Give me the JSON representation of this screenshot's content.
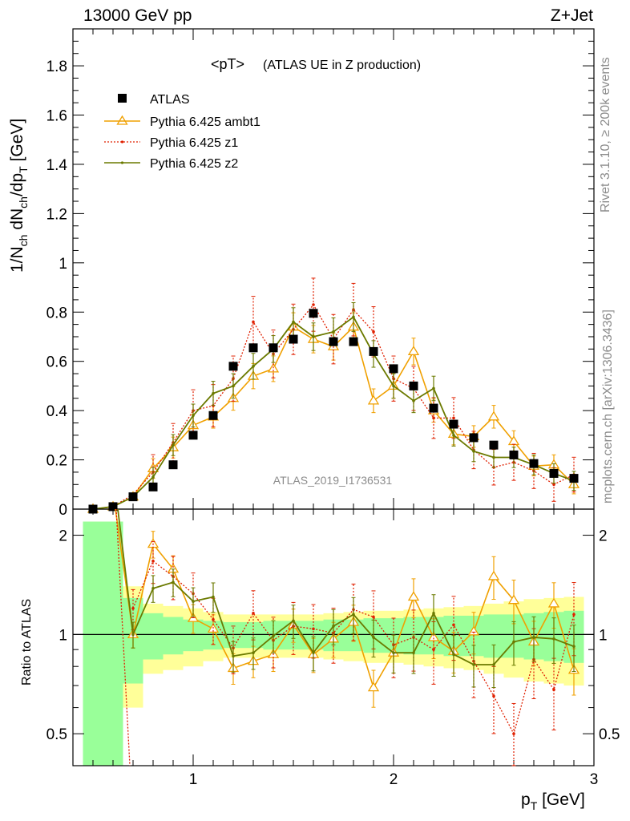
{
  "header": {
    "energy_label": "13000 GeV pp",
    "process_label": "Z+Jet"
  },
  "side": {
    "rivet_label": "Rivet 3.1.10, ≥ 200k events",
    "mcplots_label": "mcplots.cern.ch [arXiv:1306.3436]"
  },
  "colors": {
    "atlas": "#000000",
    "ambt1": "#f0a000",
    "z1": "#e02000",
    "z2": "#6b7a00",
    "band_inner": "#99ff99",
    "band_outer": "#ffff99"
  },
  "chart_data": [
    {
      "type": "scatter",
      "title": "<pT>",
      "subtitle": "(ATLAS UE in Z production)",
      "ylabel_main": "1/N",
      "watermark": "ATLAS_2019_I1736531",
      "xlabel": "p_T [GeV]",
      "xlim": [
        0.4,
        3.0
      ],
      "ylim": [
        0,
        1.95
      ],
      "x_ticks": [
        "1",
        "2",
        "3"
      ],
      "y_ticks": [
        "0",
        "0.2",
        "0.4",
        "0.6",
        "0.8",
        "1",
        "1.2",
        "1.4",
        "1.6",
        "1.8"
      ],
      "legend_position": "top-left",
      "x": [
        0.5,
        0.6,
        0.7,
        0.8,
        0.9,
        1.0,
        1.1,
        1.2,
        1.3,
        1.4,
        1.5,
        1.6,
        1.7,
        1.8,
        1.9,
        2.0,
        2.1,
        2.2,
        2.3,
        2.4,
        2.5,
        2.6,
        2.7,
        2.8,
        2.9
      ],
      "series": [
        {
          "name": "ATLAS",
          "values": [
            0.0,
            0.01,
            0.05,
            0.09,
            0.18,
            0.3,
            0.38,
            0.58,
            0.655,
            0.655,
            0.69,
            0.795,
            0.68,
            0.68,
            0.64,
            0.57,
            0.5,
            0.41,
            0.345,
            0.29,
            0.26,
            0.22,
            0.185,
            0.145,
            0.125
          ]
        },
        {
          "name": "Pythia 6.425 ambt1",
          "values": [
            0.0,
            0.01,
            0.05,
            0.165,
            0.25,
            0.34,
            0.375,
            0.45,
            0.54,
            0.57,
            0.74,
            0.69,
            0.66,
            0.74,
            0.44,
            0.5,
            0.64,
            0.4,
            0.305,
            0.295,
            0.375,
            0.275,
            0.175,
            0.18,
            0.1
          ]
        },
        {
          "name": "Pythia 6.425 z1",
          "values": [
            0.0,
            0.01,
            0.06,
            0.15,
            0.27,
            0.4,
            0.42,
            0.53,
            0.76,
            0.63,
            0.73,
            0.83,
            0.69,
            0.81,
            0.72,
            0.53,
            0.49,
            0.37,
            0.37,
            0.24,
            0.17,
            0.19,
            0.155,
            0.1,
            0.14
          ]
        },
        {
          "name": "Pythia 6.425 z2",
          "values": [
            0.0,
            0.01,
            0.05,
            0.13,
            0.26,
            0.38,
            0.47,
            0.5,
            0.58,
            0.65,
            0.76,
            0.7,
            0.72,
            0.78,
            0.63,
            0.5,
            0.44,
            0.49,
            0.3,
            0.235,
            0.21,
            0.21,
            0.18,
            0.145,
            0.115
          ]
        }
      ],
      "errors": {
        "ambt1": 0.05,
        "z1": 0.09,
        "z2": 0.05
      }
    },
    {
      "type": "scatter",
      "ylabel": "Ratio to ATLAS",
      "xlabel": "p_T [GeV]",
      "ylim": [
        0.4,
        2.4
      ],
      "y_ticks": [
        "0.5",
        "1",
        "2"
      ],
      "x": [
        0.7,
        0.8,
        0.9,
        1.0,
        1.1,
        1.2,
        1.3,
        1.4,
        1.5,
        1.6,
        1.7,
        1.8,
        1.9,
        2.0,
        2.1,
        2.2,
        2.3,
        2.4,
        2.5,
        2.6,
        2.7,
        2.8,
        2.9
      ],
      "series": [
        {
          "name": "Pythia 6.425 ambt1",
          "values": [
            1.0,
            1.88,
            1.58,
            1.12,
            1.04,
            0.79,
            0.83,
            0.87,
            1.07,
            0.87,
            0.97,
            1.09,
            0.69,
            0.88,
            1.3,
            0.98,
            0.89,
            1.02,
            1.5,
            1.27,
            0.95,
            1.24,
            0.78
          ]
        },
        {
          "name": "Pythia 6.425 z1",
          "values": [
            1.2,
            1.67,
            1.5,
            1.33,
            1.11,
            0.91,
            1.16,
            0.96,
            1.06,
            1.04,
            1.01,
            1.19,
            1.13,
            0.93,
            0.98,
            0.9,
            1.07,
            0.83,
            0.65,
            0.5,
            0.84,
            0.68,
            1.15
          ]
        },
        {
          "name": "Pythia 6.425 z2",
          "values": [
            1.0,
            1.38,
            1.44,
            1.26,
            1.3,
            0.86,
            0.88,
            0.99,
            1.1,
            0.88,
            1.06,
            1.15,
            0.98,
            0.88,
            0.88,
            1.16,
            0.87,
            0.81,
            0.81,
            0.95,
            0.98,
            0.97,
            0.92
          ]
        }
      ],
      "band_x_edges": [
        0.45,
        0.65,
        0.75,
        0.85,
        0.95,
        1.05,
        1.15,
        1.25,
        1.35,
        1.45,
        1.55,
        1.65,
        1.75,
        1.85,
        1.95,
        2.05,
        2.15,
        2.25,
        2.35,
        2.45,
        2.55,
        2.65,
        2.75,
        2.85,
        2.95
      ],
      "band_inner": [
        1.2,
        0.29,
        0.16,
        0.13,
        0.11,
        0.1,
        0.09,
        0.09,
        0.1,
        0.1,
        0.1,
        0.11,
        0.11,
        0.12,
        0.12,
        0.13,
        0.13,
        0.14,
        0.14,
        0.15,
        0.15,
        0.16,
        0.17,
        0.18
      ],
      "band_outer": [
        1.2,
        0.4,
        0.24,
        0.22,
        0.2,
        0.17,
        0.15,
        0.15,
        0.15,
        0.15,
        0.15,
        0.16,
        0.17,
        0.18,
        0.18,
        0.19,
        0.2,
        0.21,
        0.22,
        0.24,
        0.26,
        0.28,
        0.29,
        0.3
      ]
    }
  ]
}
